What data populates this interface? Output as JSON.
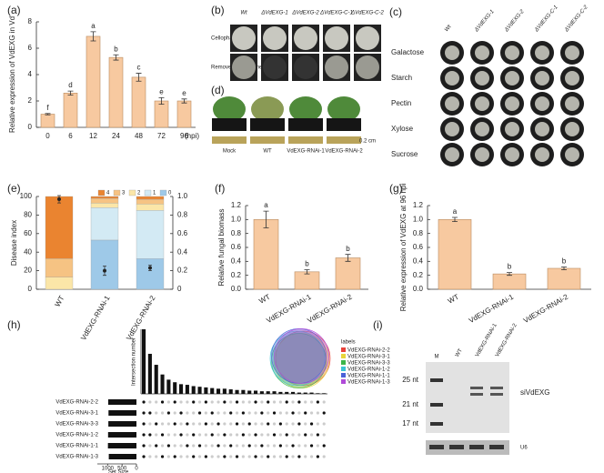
{
  "photos": {
    "b": {
      "label": "(b)",
      "columns": [
        "Wt",
        "ΔVdEXG-1",
        "ΔVdEXG-2",
        "ΔVdEXG-C-1",
        "ΔVdEXG-C-2"
      ],
      "rows": [
        "Cellophane",
        "Removed cellophane"
      ]
    },
    "c": {
      "label": "(c)",
      "columns": [
        "Wt",
        "ΔVdEXG-1",
        "ΔVdEXG-2",
        "ΔVdEXG-C-1",
        "ΔVdEXG-C-2"
      ],
      "rows": [
        "Galactose",
        "Starch",
        "Pectin",
        "Xylose",
        "Sucrose"
      ]
    },
    "d": {
      "label": "(d)",
      "columns": [
        "Mock",
        "WT",
        "VdEXG-RNAi-1",
        "VdEXG-RNAi-2"
      ],
      "scale": "0.2 cm"
    },
    "i": {
      "label": "(i)",
      "lanes": [
        "M",
        "WT",
        "VdEXG-RNAi-1",
        "VdEXG-RNAi-2"
      ],
      "markers": [
        "25 nt",
        "21 nt",
        "17 nt"
      ],
      "target": "siVdEXG",
      "control": "U6"
    }
  },
  "chart_data": [
    {
      "type": "bar",
      "title": "(a)",
      "ylabel": "Relative expression of VdEXG in Vd",
      "xlabel": "(hpi)",
      "categories": [
        "0",
        "6",
        "12",
        "24",
        "48",
        "72",
        "96"
      ],
      "values": [
        1.0,
        2.6,
        6.9,
        5.3,
        3.8,
        2.0,
        2.0
      ],
      "errors": [
        0.05,
        0.15,
        0.35,
        0.2,
        0.3,
        0.25,
        0.15
      ],
      "annotations": [
        "f",
        "d",
        "a",
        "b",
        "c",
        "e",
        "e"
      ],
      "color": "#f7c9a0",
      "ylim": [
        0,
        8
      ],
      "yticks": [
        0,
        2,
        4,
        6,
        8
      ]
    },
    {
      "type": "stacked",
      "title": "(e)",
      "ylabel": "Disease index",
      "categories": [
        "WT",
        "VdEXG-RNAi-1",
        "VdEXG-RNAi-2"
      ],
      "series": [
        {
          "name": "0",
          "color": "#9ec9e8",
          "axis": "y2",
          "values": [
            0,
            0.53,
            0.33
          ]
        },
        {
          "name": "1",
          "color": "#d3eaf4",
          "axis": "y2",
          "values": [
            0,
            0.35,
            0.52
          ]
        },
        {
          "name": "2",
          "color": "#fbe6a8",
          "axis": "y2",
          "values": [
            0.13,
            0.05,
            0.07
          ]
        },
        {
          "name": "3",
          "color": "#f6c383",
          "axis": "y2",
          "values": [
            0.2,
            0.05,
            0.05
          ]
        },
        {
          "name": "4",
          "color": "#ea8430",
          "axis": "y2",
          "values": [
            0.67,
            0.02,
            0.03
          ]
        }
      ],
      "disease_index": {
        "values": [
          97,
          20,
          23
        ],
        "errors": [
          4,
          5,
          3
        ]
      },
      "ylim": [
        0,
        100
      ],
      "yticks": [
        0,
        20,
        40,
        60,
        80,
        100
      ],
      "y2lim": [
        0,
        1
      ],
      "y2ticks": [
        0,
        0.2,
        0.4,
        0.6,
        0.8,
        {
          "value": 1,
          "label": "1.0"
        }
      ]
    },
    {
      "type": "bar",
      "title": "(f)",
      "ylabel": "Relative fungal biomass",
      "categories": [
        "WT",
        "VdEXG-RNAi-1",
        "VdEXG-RNAi-2"
      ],
      "values": [
        1.0,
        0.25,
        0.45
      ],
      "errors": [
        0.12,
        0.03,
        0.05
      ],
      "annotations": [
        "a",
        "b",
        "b"
      ],
      "color": "#f7c9a0",
      "ylim": [
        0,
        1.2
      ],
      "yticks": [
        {
          "value": 0,
          "label": "0.0"
        },
        0.2,
        0.4,
        0.6,
        0.8,
        {
          "value": 1,
          "label": "1.0"
        },
        1.2
      ]
    },
    {
      "type": "bar",
      "title": "(g)",
      "ylabel": "Relative expression of VdEXG at 96 hpi",
      "categories": [
        "WT",
        "VdEXG-RNAi-1",
        "VdEXG-RNAi-2"
      ],
      "values": [
        1.0,
        0.22,
        0.3
      ],
      "errors": [
        0.03,
        0.02,
        0.02
      ],
      "annotations": [
        "a",
        "b",
        "b"
      ],
      "color": "#f7c9a0",
      "ylim": [
        0,
        1.2
      ],
      "yticks": [
        {
          "value": 0,
          "label": "0.0"
        },
        0.2,
        0.4,
        0.6,
        0.8,
        {
          "value": 1,
          "label": "1.0"
        },
        1.2
      ]
    },
    {
      "type": "upset",
      "title": "(h)",
      "ylabel": "Intersection number",
      "xlabel": "Set Size",
      "venn_title": "labels",
      "sets": [
        {
          "name": "VdEXG-RNAi-2-2",
          "color": "#e8433b",
          "size": 980
        },
        {
          "name": "VdEXG-RNAi-3-1",
          "color": "#e8d53b",
          "size": 970
        },
        {
          "name": "VdEXG-RNAi-3-3",
          "color": "#3bb54a",
          "size": 975
        },
        {
          "name": "VdEXG-RNAi-1-2",
          "color": "#3bc4d4",
          "size": 985
        },
        {
          "name": "VdEXG-RNAi-1-1",
          "color": "#4a62d8",
          "size": 990
        },
        {
          "name": "VdEXG-RNAi-1-3",
          "color": "#b04ad8",
          "size": 960
        }
      ],
      "intersections": [
        100,
        62,
        45,
        30,
        22,
        18,
        15,
        14,
        12,
        11,
        10,
        9,
        8,
        8,
        7,
        6,
        6,
        5,
        5,
        4,
        4,
        4,
        3,
        3,
        3,
        2,
        2,
        2,
        1,
        1
      ],
      "ylim": [
        0,
        100
      ],
      "xlim": [
        0,
        1200
      ],
      "xticks": [
        1000,
        500,
        0
      ]
    }
  ]
}
